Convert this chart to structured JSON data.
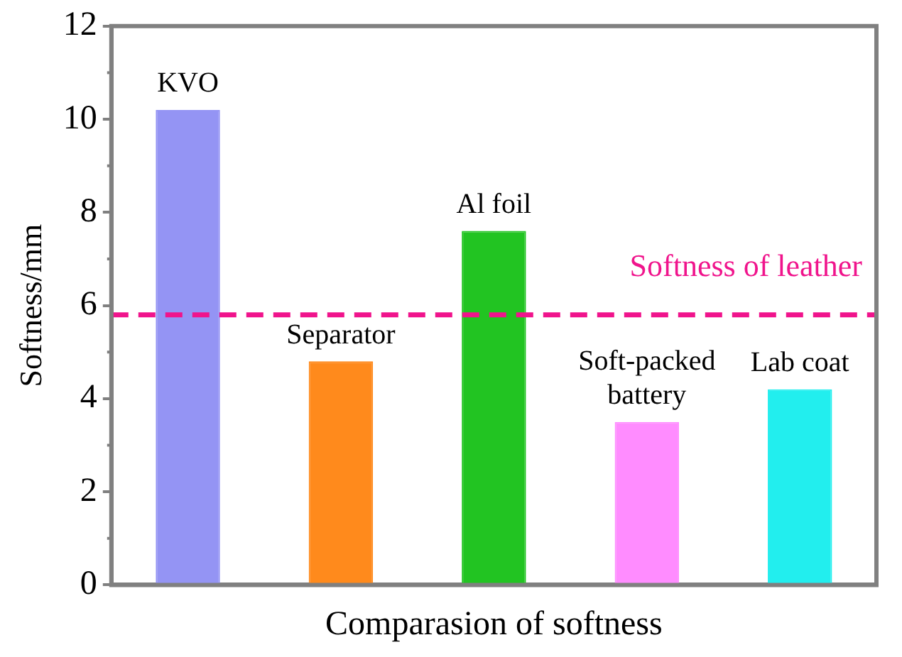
{
  "chart_data": {
    "type": "bar",
    "xlabel": "Comparasion of softness",
    "ylabel": "Softness/mm",
    "categories": [
      "KVO",
      "Separator",
      "Al foil",
      "Soft-packed battery",
      "Lab coat"
    ],
    "values": [
      10.2,
      4.8,
      7.6,
      3.5,
      4.2
    ],
    "colors": [
      "#9494f4",
      "#ff8a1c",
      "#22c422",
      "#ff8cff",
      "#22eeee"
    ],
    "ylim": [
      0,
      12
    ],
    "yticks": [
      0,
      2,
      4,
      6,
      8,
      10,
      12
    ],
    "grid": false,
    "legend": false,
    "tick_labels": "y",
    "ref_lines": [
      {
        "axis": "y",
        "value": 5.8,
        "label": "Softness of leather",
        "color": "#f0148c",
        "line_style": "dashed"
      }
    ]
  }
}
